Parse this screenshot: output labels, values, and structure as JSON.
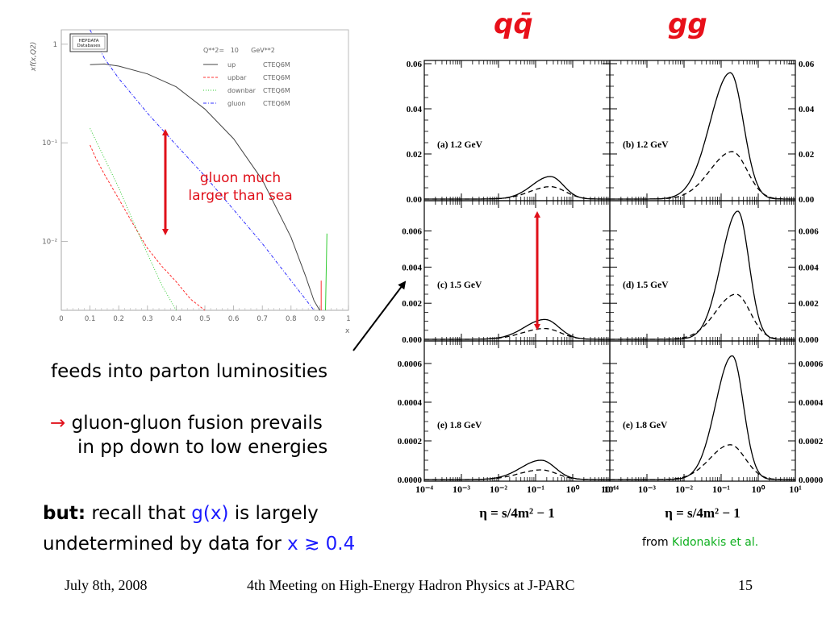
{
  "headings": {
    "qqbar": "qq̄",
    "gg": "gg"
  },
  "left_notes": {
    "gluon_line1": "gluon much",
    "gluon_line2": "larger than sea"
  },
  "text": {
    "feeds": "feeds into parton luminosities",
    "fusion_arrow": "→",
    "fusion_line1": "gluon-gluon fusion prevails",
    "fusion_line2": "in pp down to low energies",
    "but_label": "but:",
    "but_mid": " recall that ",
    "gx": "g(x)",
    "but_end": " is largely",
    "undetermined": "undetermined by data for ",
    "x_sym": "x",
    "gtrsim": "≳",
    "x_val": " 0.4",
    "from": "from ",
    "kidonakis": "Kidonakis et al."
  },
  "footer": {
    "date": "July 8th, 2008",
    "meeting": "4th Meeting on High-Energy Hadron Physics at J-PARC",
    "page": "15"
  },
  "colors": {
    "accent_red": "#e8101a",
    "blue": "#1a1aff",
    "green": "#10b020"
  },
  "chart_data": [
    {
      "type": "line",
      "id": "pdf_plot",
      "ylabel": "xf(x,Q2)",
      "xlabel": "x",
      "badge_line1": "HEPDATA",
      "badge_line2": "Databases",
      "legend_header": "Q**2=   10      GeV**2",
      "xlim": [
        0,
        1
      ],
      "ylog": true,
      "ylim": [
        0.002,
        1.4
      ],
      "x_ticks": [
        "0",
        "0.1",
        "0.2",
        "0.3",
        "0.4",
        "0.5",
        "0.6",
        "0.7",
        "0.8",
        "0.9",
        "1"
      ],
      "y_tick_values": [
        1,
        0.1,
        0.01
      ],
      "y_tick_labels": [
        "1",
        "10⁻¹",
        "10⁻²"
      ],
      "series": [
        {
          "name": "up",
          "pdf": "CTEQ6M",
          "color": "#444444",
          "dash": "",
          "x": [
            0.1,
            0.15,
            0.2,
            0.3,
            0.4,
            0.5,
            0.6,
            0.7,
            0.8,
            0.85,
            0.88,
            0.9
          ],
          "y": [
            0.62,
            0.63,
            0.6,
            0.5,
            0.37,
            0.22,
            0.11,
            0.042,
            0.011,
            0.0045,
            0.0025,
            0.002
          ]
        },
        {
          "name": "upbar",
          "pdf": "CTEQ6M",
          "color": "#ff3030",
          "dash": "3,2",
          "x": [
            0.1,
            0.12,
            0.15,
            0.2,
            0.25,
            0.3,
            0.35,
            0.4,
            0.45,
            0.5
          ],
          "y": [
            0.095,
            0.07,
            0.048,
            0.027,
            0.015,
            0.0085,
            0.0056,
            0.0039,
            0.0026,
            0.002
          ]
        },
        {
          "name": "downbar",
          "pdf": "CTEQ6M",
          "color": "#33cc33",
          "dash": "1,2",
          "x": [
            0.1,
            0.15,
            0.2,
            0.25,
            0.3,
            0.35,
            0.4
          ],
          "y": [
            0.14,
            0.07,
            0.035,
            0.016,
            0.0075,
            0.0036,
            0.002
          ]
        },
        {
          "name": "gluon",
          "pdf": "CTEQ6M",
          "color": "#3030ff",
          "dash": "4,2,1,2",
          "x": [
            0.1,
            0.15,
            0.2,
            0.3,
            0.4,
            0.5,
            0.6,
            0.7,
            0.8,
            0.85,
            0.88
          ],
          "y": [
            1.4,
            0.72,
            0.45,
            0.2,
            0.095,
            0.046,
            0.021,
            0.0095,
            0.004,
            0.0026,
            0.002
          ]
        }
      ]
    },
    {
      "type": "line",
      "id": "luminosity_panels",
      "x_axis_label": "η = s/4m² − 1",
      "xlog": true,
      "xlim": [
        0.0001,
        10
      ],
      "x_tick_labels": [
        "10⁻⁴",
        "10⁻³",
        "10⁻²",
        "10⁻¹",
        "10⁰",
        "10¹"
      ],
      "panels": [
        {
          "label": "(a) 1.2 GeV",
          "column": 0,
          "row": 0,
          "ylim": [
            0,
            0.06
          ],
          "y_ticks": [
            "0.00",
            "0.02",
            "0.04",
            "0.06"
          ],
          "solid": {
            "peak": 0.01,
            "logx": -0.6,
            "wl": 0.5,
            "wr": 0.35
          },
          "dashed": {
            "peak": 0.0055,
            "logx": -0.6,
            "wl": 0.55,
            "wr": 0.4
          }
        },
        {
          "label": "(b) 1.2 GeV",
          "column": 1,
          "row": 0,
          "ylim": [
            0,
            0.06
          ],
          "y_ticks": [
            "0.00",
            "0.02",
            "0.04",
            "0.06"
          ],
          "solid": {
            "peak": 0.056,
            "logx": -0.75,
            "wl": 0.55,
            "wr": 0.35
          },
          "dashed": {
            "peak": 0.021,
            "logx": -0.7,
            "wl": 0.6,
            "wr": 0.4
          }
        },
        {
          "label": "(c) 1.5 GeV",
          "column": 0,
          "row": 1,
          "ylim": [
            0,
            0.0075
          ],
          "y_ticks": [
            "0.000",
            "0.002",
            "0.004",
            "0.006"
          ],
          "solid": {
            "peak": 0.0011,
            "logx": -0.75,
            "wl": 0.55,
            "wr": 0.38
          },
          "dashed": {
            "peak": 0.0006,
            "logx": -0.75,
            "wl": 0.6,
            "wr": 0.42
          }
        },
        {
          "label": "(d) 1.5 GeV",
          "column": 1,
          "row": 1,
          "ylim": [
            0,
            0.0075
          ],
          "y_ticks": [
            "0.000",
            "0.002",
            "0.004",
            "0.006"
          ],
          "solid": {
            "peak": 0.0071,
            "logx": -0.55,
            "wl": 0.45,
            "wr": 0.3
          },
          "dashed": {
            "peak": 0.0025,
            "logx": -0.6,
            "wl": 0.55,
            "wr": 0.38
          }
        },
        {
          "label": "(e) 1.8 GeV",
          "column": 0,
          "row": 2,
          "ylim": [
            0,
            0.0007
          ],
          "y_ticks": [
            "0.0000",
            "0.0002",
            "0.0004",
            "0.0006"
          ],
          "solid": {
            "peak": 0.0001,
            "logx": -0.85,
            "wl": 0.55,
            "wr": 0.38
          },
          "dashed": {
            "peak": 5e-05,
            "logx": -0.85,
            "wl": 0.6,
            "wr": 0.42
          }
        },
        {
          "label": "(e) 1.8 GeV",
          "column": 1,
          "row": 2,
          "ylim": [
            0,
            0.0007
          ],
          "y_ticks": [
            "0.0000",
            "0.0002",
            "0.0004",
            "0.0006"
          ],
          "solid": {
            "peak": 0.00064,
            "logx": -0.7,
            "wl": 0.45,
            "wr": 0.3
          },
          "dashed": {
            "peak": 0.00018,
            "logx": -0.75,
            "wl": 0.55,
            "wr": 0.4
          }
        }
      ]
    }
  ]
}
